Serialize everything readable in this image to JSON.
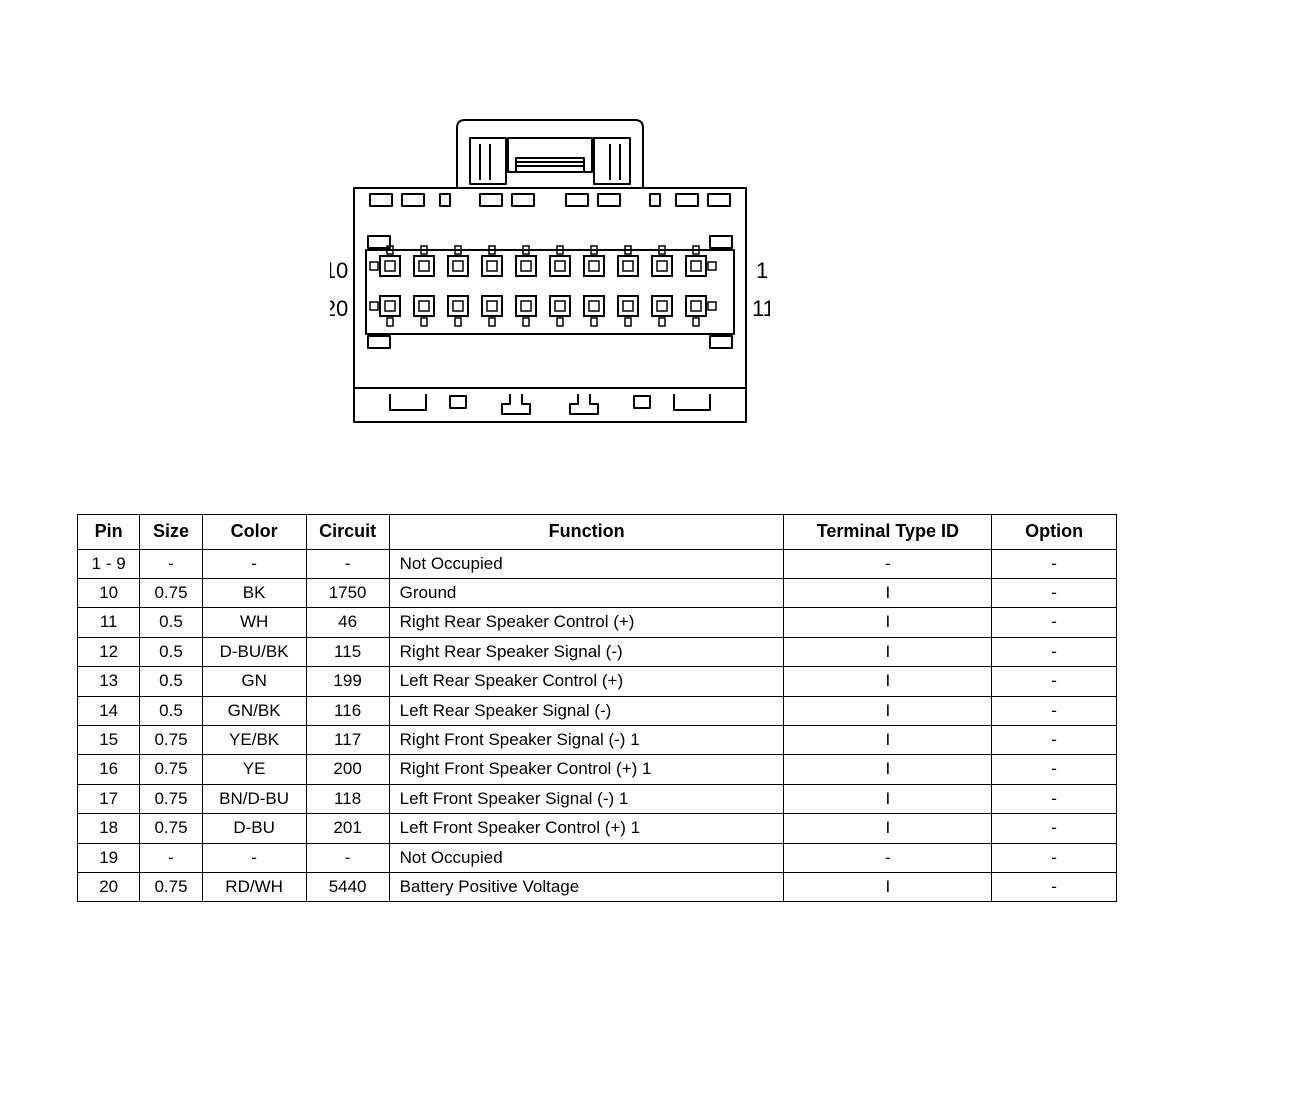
{
  "connector": {
    "pin_labels": {
      "left_top": "10",
      "left_bottom": "20",
      "right_top": "1",
      "right_bottom": "11"
    },
    "pins_per_row": 10,
    "rows": 2,
    "stroke_color": "#000000",
    "stroke_width": 2,
    "fill_color": "#ffffff",
    "label_fontsize": 22
  },
  "table": {
    "columns": [
      {
        "key": "pin",
        "label": "Pin",
        "width": "6%",
        "align": "center"
      },
      {
        "key": "size",
        "label": "Size",
        "width": "6%",
        "align": "center"
      },
      {
        "key": "color",
        "label": "Color",
        "width": "10%",
        "align": "center"
      },
      {
        "key": "circuit",
        "label": "Circuit",
        "width": "8%",
        "align": "center"
      },
      {
        "key": "function",
        "label": "Function",
        "width": "38%",
        "align": "left"
      },
      {
        "key": "ttid",
        "label": "Terminal Type ID",
        "width": "20%",
        "align": "center"
      },
      {
        "key": "option",
        "label": "Option",
        "width": "12%",
        "align": "center"
      }
    ],
    "rows": [
      {
        "pin": "1 - 9",
        "size": "-",
        "color": "-",
        "circuit": "-",
        "function": "Not Occupied",
        "ttid": "-",
        "option": "-"
      },
      {
        "pin": "10",
        "size": "0.75",
        "color": "BK",
        "circuit": "1750",
        "function": "Ground",
        "ttid": "I",
        "option": "-"
      },
      {
        "pin": "11",
        "size": "0.5",
        "color": "WH",
        "circuit": "46",
        "function": "Right Rear Speaker Control (+)",
        "ttid": "I",
        "option": "-"
      },
      {
        "pin": "12",
        "size": "0.5",
        "color": "D-BU/BK",
        "circuit": "115",
        "function": "Right Rear Speaker Signal (-)",
        "ttid": "I",
        "option": "-"
      },
      {
        "pin": "13",
        "size": "0.5",
        "color": "GN",
        "circuit": "199",
        "function": "Left Rear Speaker Control (+)",
        "ttid": "I",
        "option": "-"
      },
      {
        "pin": "14",
        "size": "0.5",
        "color": "GN/BK",
        "circuit": "116",
        "function": "Left Rear Speaker Signal (-)",
        "ttid": "I",
        "option": "-"
      },
      {
        "pin": "15",
        "size": "0.75",
        "color": "YE/BK",
        "circuit": "117",
        "function": "Right Front Speaker Signal (-) 1",
        "ttid": "I",
        "option": "-"
      },
      {
        "pin": "16",
        "size": "0.75",
        "color": "YE",
        "circuit": "200",
        "function": "Right Front Speaker Control (+) 1",
        "ttid": "I",
        "option": "-"
      },
      {
        "pin": "17",
        "size": "0.75",
        "color": "BN/D-BU",
        "circuit": "118",
        "function": "Left Front Speaker Signal (-) 1",
        "ttid": "I",
        "option": "-"
      },
      {
        "pin": "18",
        "size": "0.75",
        "color": "D-BU",
        "circuit": "201",
        "function": "Left Front Speaker Control (+) 1",
        "ttid": "I",
        "option": "-"
      },
      {
        "pin": "19",
        "size": "-",
        "color": "-",
        "circuit": "-",
        "function": "Not Occupied",
        "ttid": "-",
        "option": "-"
      },
      {
        "pin": "20",
        "size": "0.75",
        "color": "RD/WH",
        "circuit": "5440",
        "function": "Battery Positive Voltage",
        "ttid": "I",
        "option": "-"
      }
    ],
    "header_fontsize": 18,
    "body_fontsize": 17,
    "border_color": "#000000"
  }
}
